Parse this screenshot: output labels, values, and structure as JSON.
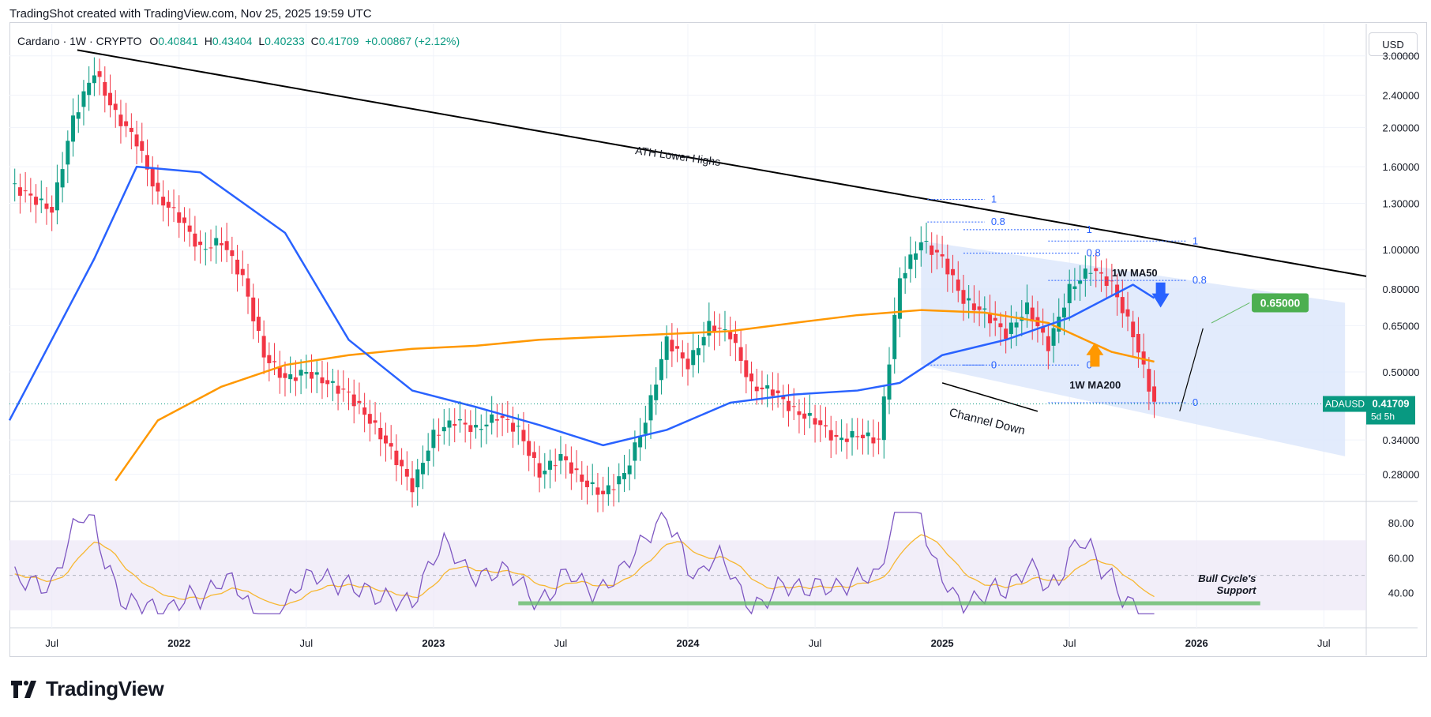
{
  "header": {
    "created_by": "TradingShot created with TradingView.com, Nov 25, 2025 19:59 UTC"
  },
  "legend": {
    "symbol": "Cardano · 1W · CRYPTO",
    "open_label": "O",
    "open": "0.40841",
    "high_label": "H",
    "high": "0.43404",
    "low_label": "L",
    "low": "0.40233",
    "close_label": "C",
    "close": "0.41709",
    "change": "+0.00867 (+2.12%)"
  },
  "currency_button": "USD",
  "footer": {
    "brand": "TradingView",
    "logo_icon": "tradingview-logo-icon"
  },
  "colors": {
    "bull": "#089981",
    "bear": "#f23645",
    "ma50": "#2962ff",
    "ma200": "#ff9800",
    "rsi": "#7e57c2",
    "rsi_ma": "#f7b731",
    "channel_fill": "#dbe6fb",
    "support": "#66bb6a",
    "fib": "#2962ff"
  },
  "chart_data": {
    "type": "line",
    "title": "Cardano · 1W · CRYPTO",
    "y_scale": "log",
    "ylim": [
      0.24,
      3.6
    ],
    "y_ticks": [
      "3.00000",
      "2.40000",
      "2.00000",
      "1.60000",
      "1.30000",
      "1.00000",
      "0.80000",
      "0.65000",
      "0.50000",
      "0.34000",
      "0.28000"
    ],
    "x_ticks": [
      "Jul",
      "2022",
      "Jul",
      "2023",
      "Jul",
      "2024",
      "Jul",
      "2025",
      "Jul",
      "2026",
      "Jul"
    ],
    "price_series": {
      "name": "ADAUSD",
      "dates": [
        "2021-05",
        "2021-06",
        "2021-07",
        "2021-08",
        "2021-09",
        "2021-10",
        "2021-11",
        "2021-12",
        "2022-01",
        "2022-02",
        "2022-03",
        "2022-04",
        "2022-05",
        "2022-06",
        "2022-07",
        "2022-08",
        "2022-09",
        "2022-10",
        "2022-11",
        "2022-12",
        "2023-01",
        "2023-02",
        "2023-03",
        "2023-04",
        "2023-05",
        "2023-06",
        "2023-07",
        "2023-08",
        "2023-09",
        "2023-10",
        "2023-11",
        "2023-12",
        "2024-01",
        "2024-02",
        "2024-03",
        "2024-04",
        "2024-05",
        "2024-06",
        "2024-07",
        "2024-08",
        "2024-09",
        "2024-10",
        "2024-11",
        "2024-12",
        "2025-01",
        "2025-02",
        "2025-03",
        "2025-04",
        "2025-05",
        "2025-06",
        "2025-07",
        "2025-08",
        "2025-09",
        "2025-10",
        "2025-11"
      ],
      "values": [
        1.45,
        1.35,
        1.25,
        2.1,
        2.75,
        2.15,
        1.85,
        1.35,
        1.2,
        1.0,
        1.05,
        0.85,
        0.55,
        0.48,
        0.5,
        0.47,
        0.44,
        0.38,
        0.32,
        0.26,
        0.35,
        0.38,
        0.36,
        0.39,
        0.36,
        0.28,
        0.31,
        0.27,
        0.25,
        0.28,
        0.38,
        0.6,
        0.52,
        0.65,
        0.62,
        0.46,
        0.45,
        0.4,
        0.38,
        0.34,
        0.35,
        0.34,
        0.85,
        1.05,
        0.95,
        0.75,
        0.7,
        0.62,
        0.72,
        0.58,
        0.8,
        0.9,
        0.82,
        0.62,
        0.41709
      ]
    },
    "ma50": {
      "name": "1W MA50",
      "dates": [
        "2021-05",
        "2021-09",
        "2021-11",
        "2022-02",
        "2022-06",
        "2022-09",
        "2022-12",
        "2023-03",
        "2023-06",
        "2023-09",
        "2023-12",
        "2024-03",
        "2024-06",
        "2024-09",
        "2024-11",
        "2025-01",
        "2025-04",
        "2025-07",
        "2025-10",
        "2025-11"
      ],
      "values": [
        0.38,
        0.95,
        1.6,
        1.55,
        1.1,
        0.6,
        0.45,
        0.41,
        0.37,
        0.33,
        0.36,
        0.42,
        0.44,
        0.45,
        0.47,
        0.55,
        0.6,
        0.68,
        0.82,
        0.76
      ]
    },
    "ma200": {
      "name": "1W MA200",
      "dates": [
        "2021-10",
        "2021-12",
        "2022-03",
        "2022-06",
        "2022-09",
        "2022-12",
        "2023-03",
        "2023-06",
        "2023-09",
        "2023-12",
        "2024-03",
        "2024-06",
        "2024-09",
        "2024-12",
        "2025-03",
        "2025-06",
        "2025-09",
        "2025-11"
      ],
      "values": [
        0.27,
        0.38,
        0.46,
        0.52,
        0.55,
        0.57,
        0.58,
        0.6,
        0.61,
        0.62,
        0.63,
        0.66,
        0.69,
        0.71,
        0.7,
        0.66,
        0.56,
        0.53
      ]
    },
    "annotations": {
      "trendline_label": "ATH Lower Highs",
      "channel_label": "Channel Down",
      "ma50_label": "1W MA50",
      "ma200_label": "1W MA200",
      "target_price": "0.65000",
      "current_symbol": "ADAUSD",
      "current_price": "0.41709",
      "current_countdown": "5d 5h",
      "support_label_1": "Bull Cycle's",
      "support_label_2": "Support",
      "fib_labels": [
        "1",
        "0.8",
        "0",
        "1",
        "0.8",
        "0",
        "1",
        "0.8",
        "0"
      ]
    },
    "rsi": {
      "y_ticks": [
        "80.00",
        "60.00",
        "40.00"
      ],
      "band": [
        30,
        70
      ],
      "support_level": 34
    }
  }
}
